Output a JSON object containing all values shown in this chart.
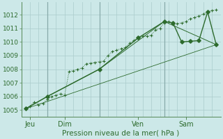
{
  "bg_color": "#cce8e8",
  "grid_color": "#aacccc",
  "line_color": "#2d6b2d",
  "title": "Pression niveau de la mer( hPa )",
  "ylim": [
    1004.5,
    1012.9
  ],
  "yticks": [
    1005,
    1006,
    1007,
    1008,
    1009,
    1010,
    1011,
    1012
  ],
  "xlim": [
    -0.5,
    22.5
  ],
  "xtick_labels": [
    "Jeu",
    "Dim",
    "Ven",
    "Sam"
  ],
  "xtick_positions": [
    0.5,
    4.5,
    13.0,
    18.5
  ],
  "vline_positions": [
    2.5,
    8.5,
    16.0
  ],
  "series1_x": [
    0,
    0.5,
    1,
    1.5,
    2,
    2.5,
    3,
    3.5,
    4,
    4.5,
    5,
    5.5,
    6,
    6.5,
    7,
    7.5,
    8,
    8.5,
    9,
    9.5,
    10,
    10.5,
    11,
    11.5,
    12,
    12.5,
    13,
    13.5,
    14,
    14.5,
    15,
    15.5,
    16,
    16.5,
    17,
    17.5,
    18,
    18.5,
    19,
    19.5,
    20,
    20.5,
    21,
    21.5,
    22
  ],
  "series1_y": [
    1005.1,
    1005.3,
    1005.6,
    1005.4,
    1005.5,
    1005.8,
    1006.0,
    1006.1,
    1006.2,
    1006.1,
    1007.8,
    1007.9,
    1008.0,
    1008.1,
    1008.4,
    1008.45,
    1008.5,
    1008.55,
    1008.6,
    1009.0,
    1009.3,
    1009.4,
    1009.5,
    1009.6,
    1009.9,
    1010.1,
    1010.3,
    1010.4,
    1010.45,
    1010.5,
    1010.9,
    1011.0,
    1011.4,
    1011.5,
    1011.3,
    1011.35,
    1011.4,
    1011.5,
    1011.7,
    1011.8,
    1011.9,
    1012.05,
    1012.2,
    1012.3,
    1012.35
  ],
  "series2_x": [
    0,
    2.5,
    8.5,
    13,
    16,
    17,
    18,
    19,
    20,
    21,
    22
  ],
  "series2_y": [
    1005.1,
    1006.0,
    1008.0,
    1010.3,
    1011.5,
    1011.4,
    1010.0,
    1010.05,
    1010.1,
    1012.2,
    1009.8
  ],
  "series3_x": [
    0,
    2.5,
    8.5,
    16,
    22
  ],
  "series3_y": [
    1005.1,
    1006.0,
    1008.0,
    1011.5,
    1009.8
  ],
  "series4_x": [
    0,
    22
  ],
  "series4_y": [
    1005.1,
    1009.8
  ]
}
